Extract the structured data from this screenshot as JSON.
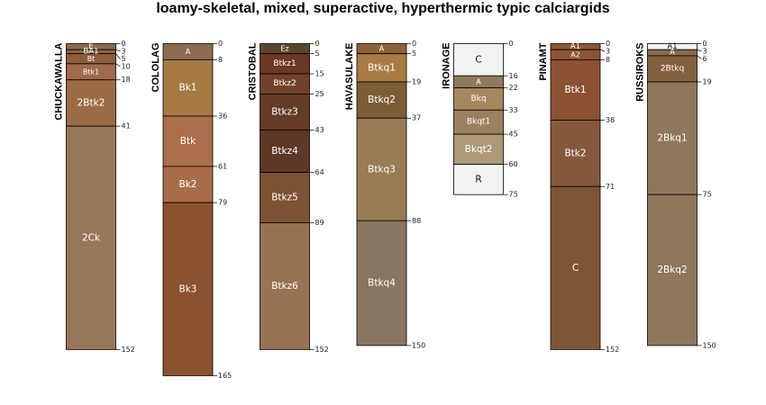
{
  "chart_data": {
    "type": "soil-profile-sketch",
    "title": "loamy-skeletal, mixed, superactive, hyperthermic typic calciargids",
    "depth_units": "cm",
    "max_depth": 165,
    "profiles": [
      {
        "name": "CHUCKAWALLA",
        "horizons": [
          {
            "name": "E",
            "top": 0,
            "bottom": 3,
            "color": "#8c6a4c"
          },
          {
            "name": "BA1",
            "top": 3,
            "bottom": 5,
            "color": "#8d6547"
          },
          {
            "name": "Bt",
            "top": 5,
            "bottom": 10,
            "color": "#8e5c3c"
          },
          {
            "name": "Btk1",
            "top": 10,
            "bottom": 18,
            "color": "#a06b4b"
          },
          {
            "name": "2Btk2",
            "top": 18,
            "bottom": 41,
            "color": "#9c6b44"
          },
          {
            "name": "2Ck",
            "top": 41,
            "bottom": 152,
            "color": "#98765a"
          }
        ]
      },
      {
        "name": "COLOLAG",
        "horizons": [
          {
            "name": "A",
            "top": 0,
            "bottom": 8,
            "color": "#8d6b50"
          },
          {
            "name": "Bk1",
            "top": 8,
            "bottom": 36,
            "color": "#a57a43"
          },
          {
            "name": "Btk",
            "top": 36,
            "bottom": 61,
            "color": "#ab6f4b"
          },
          {
            "name": "Bk2",
            "top": 61,
            "bottom": 79,
            "color": "#a96c48"
          },
          {
            "name": "Bk3",
            "top": 79,
            "bottom": 165,
            "color": "#8a5230"
          }
        ]
      },
      {
        "name": "CRISTOBAL",
        "horizons": [
          {
            "name": "Ez",
            "top": 0,
            "bottom": 5,
            "color": "#5b4632"
          },
          {
            "name": "Btkz1",
            "top": 5,
            "bottom": 15,
            "color": "#6c3724"
          },
          {
            "name": "Btkz2",
            "top": 15,
            "bottom": 25,
            "color": "#73412b"
          },
          {
            "name": "Btkz3",
            "top": 25,
            "bottom": 43,
            "color": "#643b26"
          },
          {
            "name": "Btkz4",
            "top": 43,
            "bottom": 64,
            "color": "#5e3826"
          },
          {
            "name": "Btkz5",
            "top": 64,
            "bottom": 89,
            "color": "#7b5233"
          },
          {
            "name": "Btkz6",
            "top": 89,
            "bottom": 152,
            "color": "#977253"
          }
        ]
      },
      {
        "name": "HAVASULAKE",
        "horizons": [
          {
            "name": "A",
            "top": 0,
            "bottom": 5,
            "color": "#8d6238"
          },
          {
            "name": "Btkq1",
            "top": 5,
            "bottom": 19,
            "color": "#a97a44"
          },
          {
            "name": "Btkq2",
            "top": 19,
            "bottom": 37,
            "color": "#7a5e37"
          },
          {
            "name": "Btkq3",
            "top": 37,
            "bottom": 88,
            "color": "#987c54"
          },
          {
            "name": "Btkq4",
            "top": 88,
            "bottom": 150,
            "color": "#8a7660"
          }
        ]
      },
      {
        "name": "IRONAGE",
        "horizons": [
          {
            "name": "C",
            "top": 0,
            "bottom": 16,
            "color": "#f2f2f2"
          },
          {
            "name": "A",
            "top": 16,
            "bottom": 22,
            "color": "#8f7a5e"
          },
          {
            "name": "Bkq",
            "top": 22,
            "bottom": 33,
            "color": "#a7875e"
          },
          {
            "name": "Bkqt1",
            "top": 33,
            "bottom": 45,
            "color": "#9c8060"
          },
          {
            "name": "Bkqt2",
            "top": 45,
            "bottom": 60,
            "color": "#ad9878"
          },
          {
            "name": "R",
            "top": 60,
            "bottom": 75,
            "color": "#f2f2f2"
          }
        ]
      },
      {
        "name": "PINAMT",
        "horizons": [
          {
            "name": "A1",
            "top": 0,
            "bottom": 3,
            "color": "#8e5535"
          },
          {
            "name": "A2",
            "top": 3,
            "bottom": 8,
            "color": "#8e5535"
          },
          {
            "name": "Btk1",
            "top": 8,
            "bottom": 38,
            "color": "#8b5132"
          },
          {
            "name": "Btk2",
            "top": 38,
            "bottom": 71,
            "color": "#86583c"
          },
          {
            "name": "C",
            "top": 71,
            "bottom": 152,
            "color": "#7d5637"
          }
        ]
      },
      {
        "name": "RUSSIROKS",
        "horizons": [
          {
            "name": "A1",
            "top": 0,
            "bottom": 3,
            "color": "#f4f2f6"
          },
          {
            "name": "A",
            "top": 3,
            "bottom": 6,
            "color": "#8a6a4e"
          },
          {
            "name": "2Btkq",
            "top": 6,
            "bottom": 19,
            "color": "#85603f"
          },
          {
            "name": "2Bkq1",
            "top": 19,
            "bottom": 75,
            "color": "#8f775b"
          },
          {
            "name": "2Bkq2",
            "top": 75,
            "bottom": 150,
            "color": "#8f775b"
          }
        ]
      }
    ]
  }
}
